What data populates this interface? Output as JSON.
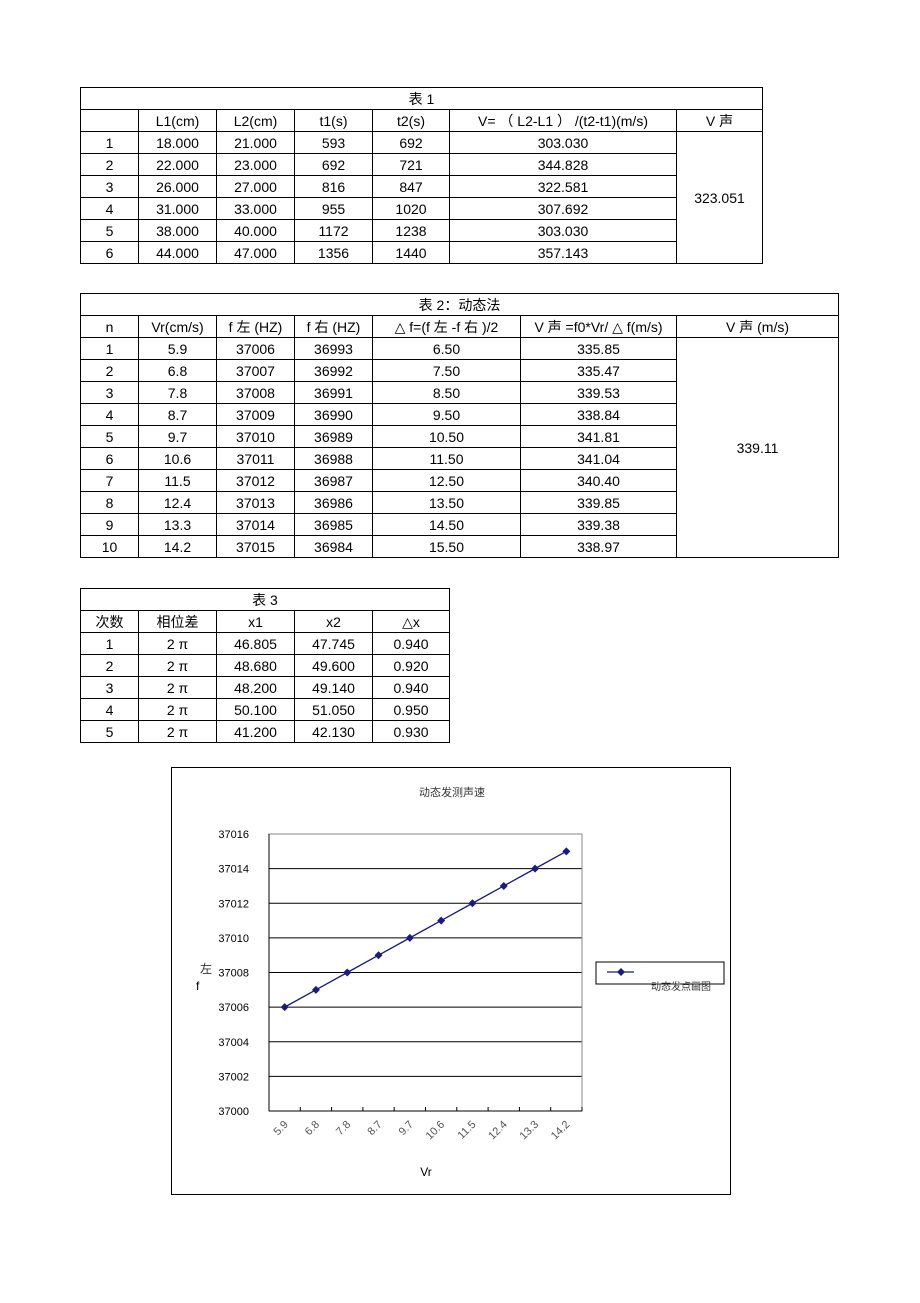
{
  "table1": {
    "title": "表 1",
    "headers": [
      "",
      "L1(cm)",
      "L2(cm)",
      "t1(s)",
      "t2(s)",
      "V= （ L2-L1 ） /(t2-t1)(m/s)",
      "V 声"
    ],
    "rows": [
      [
        "1",
        "18.000",
        "21.000",
        "593",
        "692",
        "303.030"
      ],
      [
        "2",
        "22.000",
        "23.000",
        "692",
        "721",
        "344.828"
      ],
      [
        "3",
        "26.000",
        "27.000",
        "816",
        "847",
        "322.581"
      ],
      [
        "4",
        "31.000",
        "33.000",
        "955",
        "1020",
        "307.692"
      ],
      [
        "5",
        "38.000",
        "40.000",
        "1172",
        "1238",
        "303.030"
      ],
      [
        "6",
        "44.000",
        "47.000",
        "1356",
        "1440",
        "357.143"
      ]
    ],
    "merged_value": "323.051"
  },
  "table2": {
    "title": "表 2：动态法",
    "headers": [
      "n",
      "Vr(cm/s)",
      "f 左 (HZ)",
      "f 右 (HZ)",
      "△ f=(f 左 -f 右 )/2",
      "V 声 =f0*Vr/  △ f(m/s)",
      "V 声 (m/s)"
    ],
    "rows": [
      [
        "1",
        "5.9",
        "37006",
        "36993",
        "6.50",
        "335.85"
      ],
      [
        "2",
        "6.8",
        "37007",
        "36992",
        "7.50",
        "335.47"
      ],
      [
        "3",
        "7.8",
        "37008",
        "36991",
        "8.50",
        "339.53"
      ],
      [
        "4",
        "8.7",
        "37009",
        "36990",
        "9.50",
        "338.84"
      ],
      [
        "5",
        "9.7",
        "37010",
        "36989",
        "10.50",
        "341.81"
      ],
      [
        "6",
        "10.6",
        "37011",
        "36988",
        "11.50",
        "341.04"
      ],
      [
        "7",
        "11.5",
        "37012",
        "36987",
        "12.50",
        "340.40"
      ],
      [
        "8",
        "12.4",
        "37013",
        "36986",
        "13.50",
        "339.85"
      ],
      [
        "9",
        "13.3",
        "37014",
        "36985",
        "14.50",
        "339.38"
      ],
      [
        "10",
        "14.2",
        "37015",
        "36984",
        "15.50",
        "338.97"
      ]
    ],
    "merged_value": "339.11"
  },
  "table3": {
    "title": "表 3",
    "headers": [
      "次数",
      "相位差",
      "x1",
      "x2",
      "△x"
    ],
    "rows": [
      [
        "1",
        "2 π",
        "46.805",
        "47.745",
        "0.940"
      ],
      [
        "2",
        "2 π",
        "48.680",
        "49.600",
        "0.920"
      ],
      [
        "3",
        "2 π",
        "48.200",
        "49.140",
        "0.940"
      ],
      [
        "4",
        "2 π",
        "50.100",
        "51.050",
        "0.950"
      ],
      [
        "5",
        "2 π",
        "41.200",
        "42.130",
        "0.930"
      ]
    ]
  },
  "chart_data": {
    "type": "line",
    "title": "动态发测声速",
    "xlabel": "Vr",
    "ylabel": "左\nf",
    "categories": [
      "5.9",
      "6.8",
      "7.8",
      "8.7",
      "9.7",
      "10.6",
      "11.5",
      "12.4",
      "13.3",
      "14.2"
    ],
    "series": [
      {
        "name": "动态发点画图",
        "values": [
          37006,
          37007,
          37008,
          37009,
          37010,
          37011,
          37012,
          37013,
          37014,
          37015
        ],
        "color": "#1a1a80"
      }
    ],
    "ylim": [
      37000,
      37016
    ],
    "yticks": [
      "37000",
      "37002",
      "37004",
      "37006",
      "37008",
      "37010",
      "37012",
      "37014",
      "37016"
    ],
    "grid": true,
    "legend": "right",
    "marker": "diamond"
  }
}
